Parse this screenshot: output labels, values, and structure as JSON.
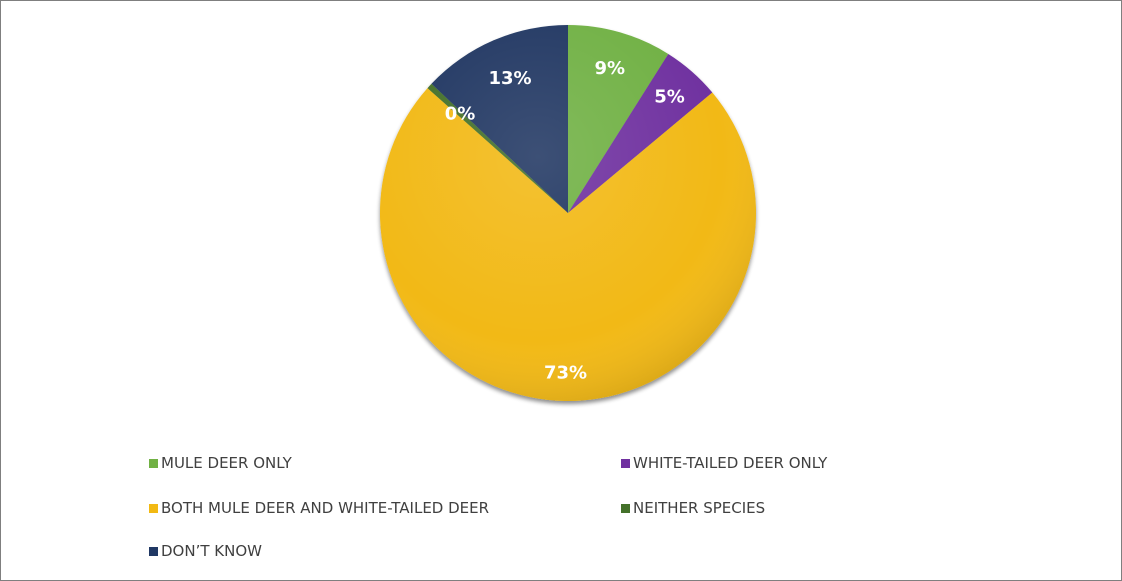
{
  "chart_data": {
    "type": "pie",
    "title": "",
    "categories": [
      "MULE DEER ONLY",
      "WHITE-TAILED DEER ONLY",
      "BOTH MULE DEER AND WHITE-TAILED DEER",
      "NEITHER SPECIES",
      "DON’T KNOW"
    ],
    "values": [
      9,
      5,
      73,
      0.5,
      13
    ],
    "labels": [
      "9%",
      "5%",
      "73%",
      "0%",
      "13%"
    ],
    "colors": [
      "#71b144",
      "#7030a0",
      "#f2b913",
      "#44712a",
      "#203864"
    ],
    "legend_position": "bottom"
  }
}
